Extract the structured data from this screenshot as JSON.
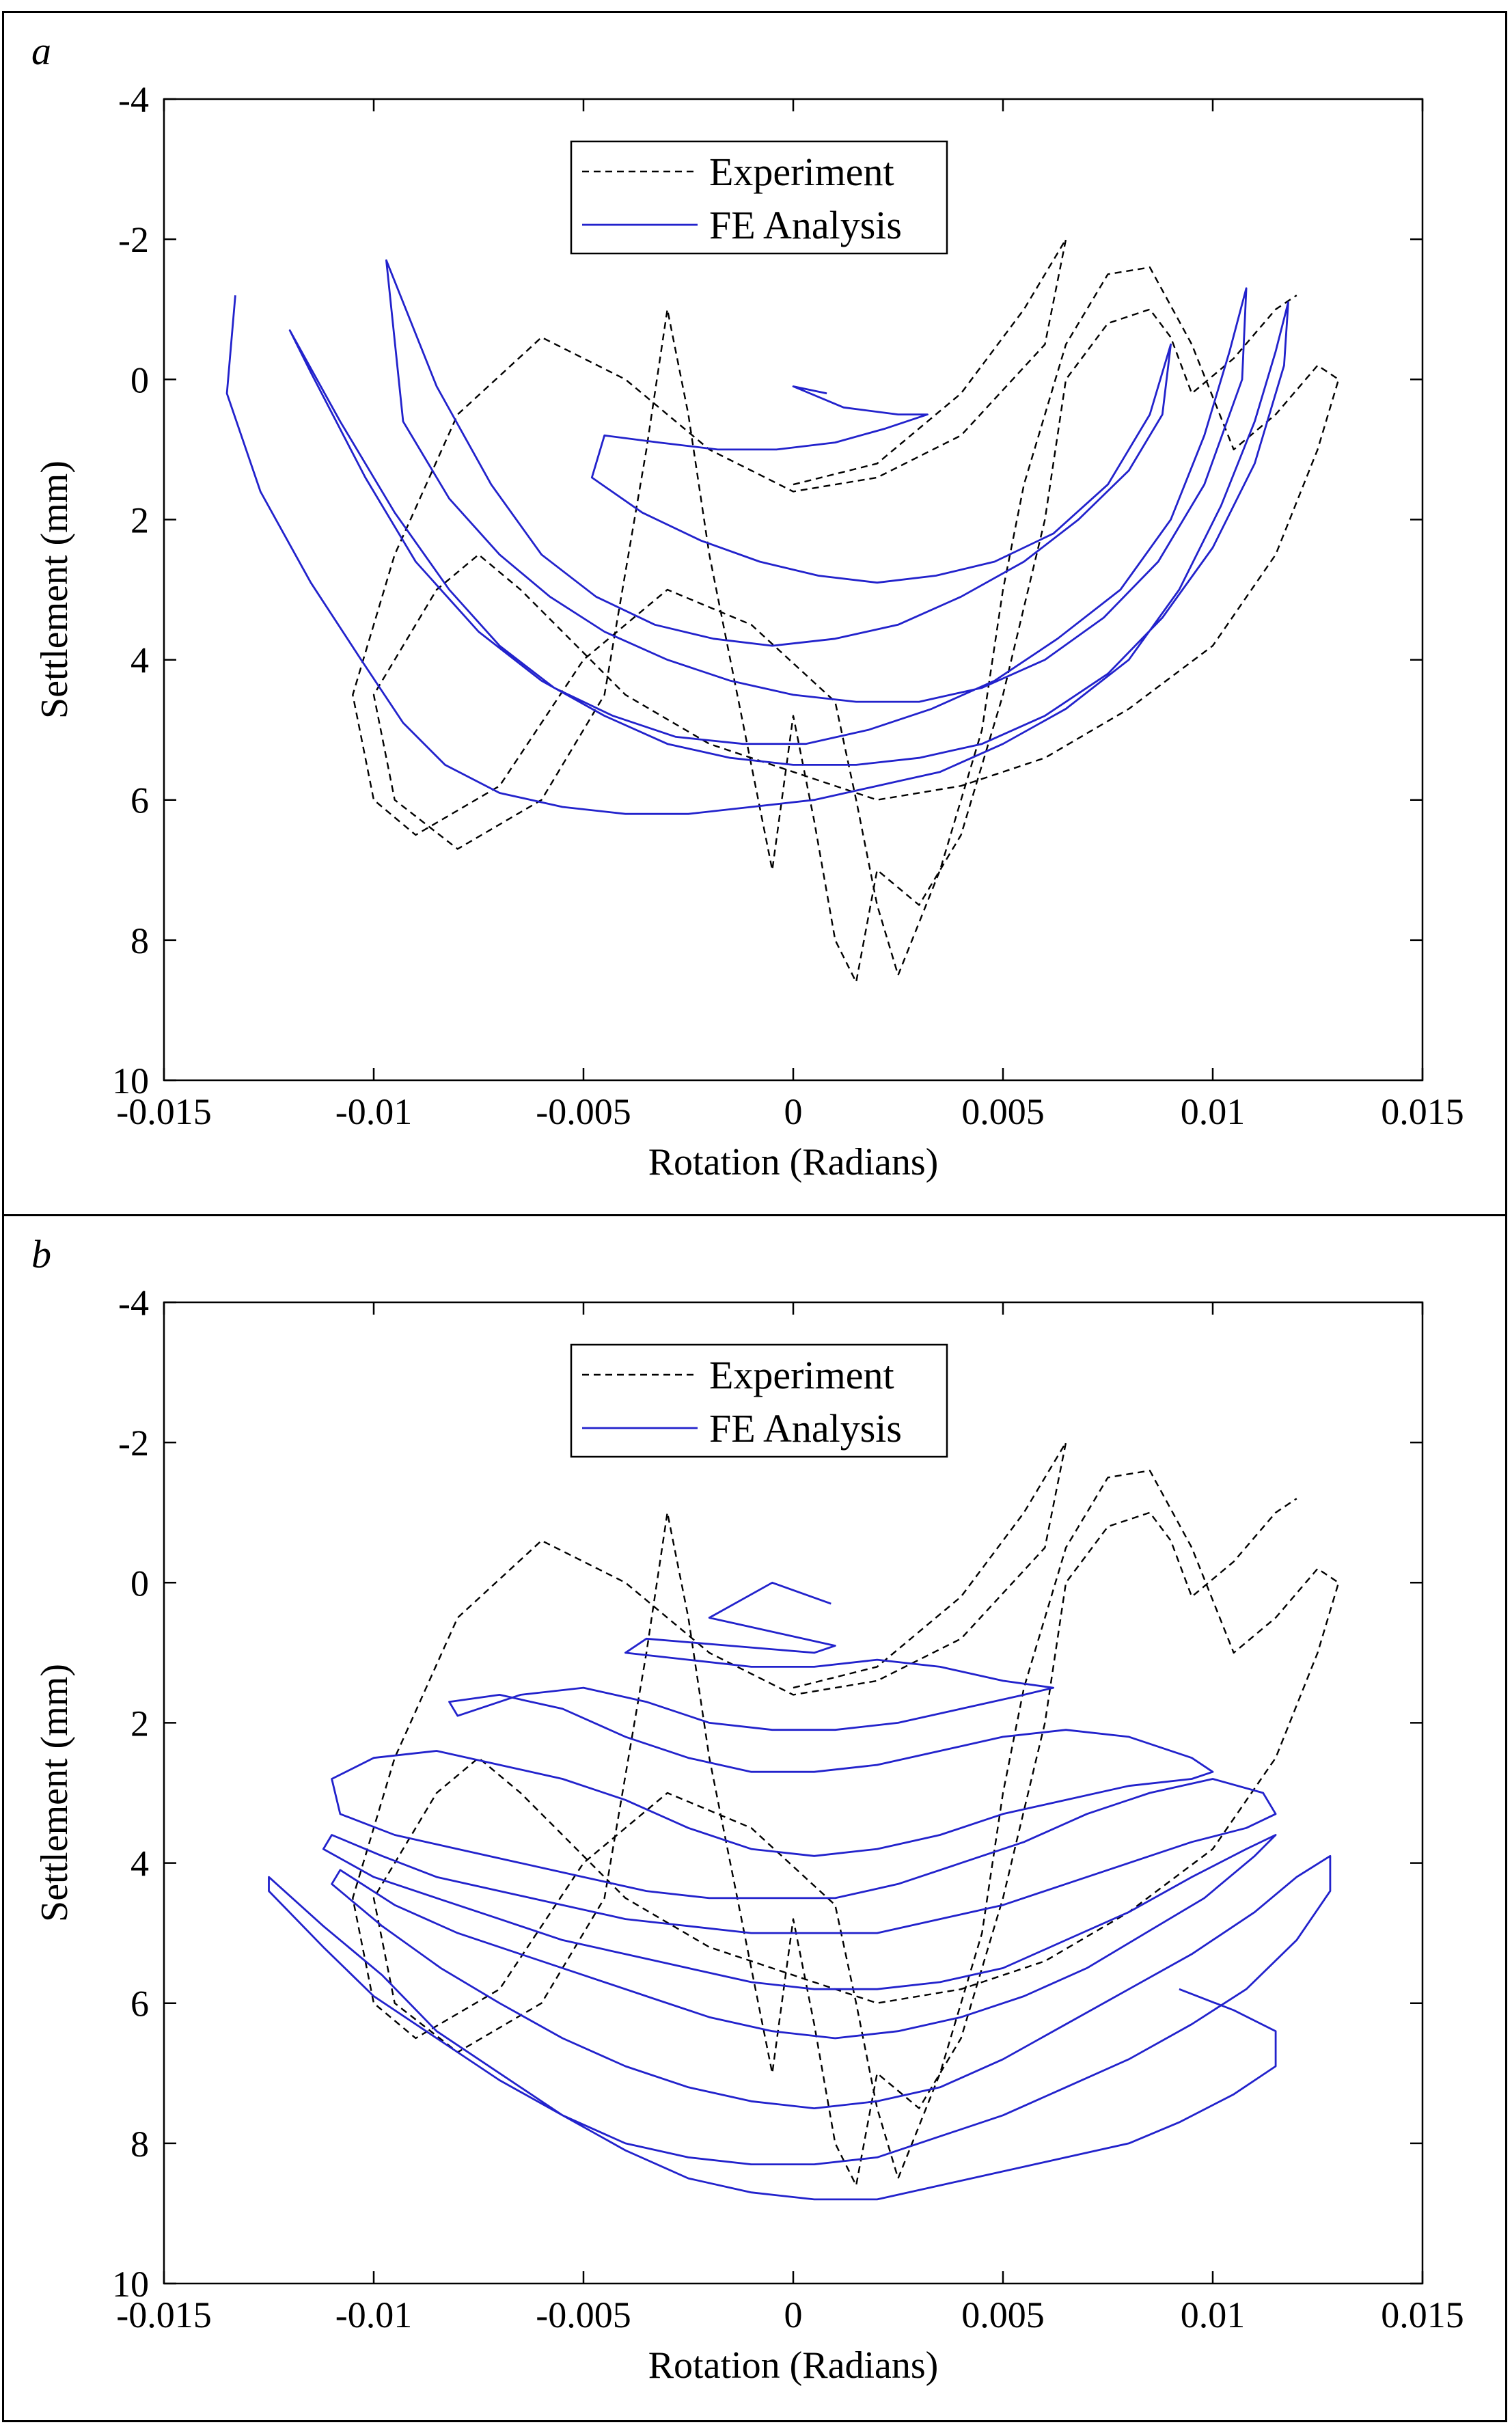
{
  "chart_data": [
    {
      "panel": "a",
      "type": "line",
      "xlabel": "Rotation (Radians)",
      "ylabel": "Settlement (mm)",
      "xlim": [
        -0.015,
        0.015
      ],
      "ylim": [
        -4,
        10
      ],
      "y_reversed": true,
      "xticks": [
        "-0.015",
        "-0.01",
        "-0.005",
        "0",
        "0.005",
        "0.01",
        "0.015"
      ],
      "yticks": [
        "-4",
        "-2",
        "0",
        "2",
        "4",
        "6",
        "8",
        "10"
      ],
      "legend": {
        "position": "top-center",
        "entries": [
          "Experiment",
          "FE Analysis"
        ]
      },
      "series": [
        {
          "name": "Experiment",
          "style": "dashed",
          "color": "#000000",
          "x": [
            0.0,
            0.002,
            0.004,
            0.0055,
            0.0065,
            0.006,
            0.004,
            0.002,
            0.0,
            -0.002,
            -0.004,
            -0.006,
            -0.008,
            -0.0095,
            -0.0105,
            -0.01,
            -0.009,
            -0.007,
            -0.005,
            -0.003,
            -0.001,
            0.001,
            0.0015,
            0.002,
            0.0025,
            0.0035,
            0.0045,
            0.005,
            0.0055,
            0.0065,
            0.0075,
            0.0085,
            0.0095,
            0.0105,
            0.0115,
            0.0125,
            0.013,
            0.0125,
            0.0115,
            0.01,
            0.008,
            0.006,
            0.004,
            0.002,
            0.0,
            -0.002,
            -0.004,
            -0.0055,
            -0.0065,
            -0.0075,
            -0.0085,
            -0.01,
            -0.0095,
            -0.008,
            -0.006,
            -0.0045,
            -0.0035,
            -0.003,
            -0.0025,
            -0.002,
            -0.0015,
            -0.001,
            -0.0005,
            0.0,
            0.0005,
            0.001,
            0.0015,
            0.002,
            0.003,
            0.004,
            0.005,
            0.006,
            0.0065,
            0.007,
            0.0075,
            0.0085,
            0.009,
            0.0095,
            0.0105,
            0.0115,
            0.012
          ],
          "y": [
            1.5,
            1.2,
            0.2,
            -1.0,
            -2.0,
            -0.5,
            0.8,
            1.4,
            1.6,
            1.0,
            0.0,
            -0.6,
            0.5,
            2.5,
            4.5,
            6.0,
            6.5,
            5.8,
            4.0,
            3.0,
            3.5,
            4.6,
            6.0,
            7.5,
            8.5,
            7.0,
            5.0,
            3.0,
            1.5,
            -0.5,
            -1.5,
            -1.6,
            -0.5,
            1.0,
            0.5,
            -0.2,
            0.0,
            1.0,
            2.5,
            3.8,
            4.7,
            5.4,
            5.8,
            6.0,
            5.6,
            5.2,
            4.5,
            3.6,
            3.0,
            2.5,
            3.0,
            4.5,
            6.0,
            6.7,
            6.0,
            4.5,
            1.0,
            -1.0,
            0.5,
            2.5,
            4.0,
            5.5,
            7.0,
            4.8,
            6.3,
            8.0,
            8.6,
            7.0,
            7.5,
            6.5,
            4.5,
            2.0,
            0.0,
            -0.4,
            -0.8,
            -1.0,
            -0.6,
            0.2,
            -0.3,
            -1.0,
            -1.2
          ]
        },
        {
          "name": "FE Analysis",
          "style": "solid",
          "color": "#2222cc",
          "x": [
            -0.0133,
            -0.0135,
            -0.0127,
            -0.0115,
            -0.0103,
            -0.0093,
            -0.0083,
            -0.007,
            -0.0055,
            -0.004,
            -0.0025,
            -0.001,
            0.0005,
            0.002,
            0.0035,
            0.005,
            0.0065,
            0.008,
            0.0092,
            0.0102,
            0.011,
            0.0115,
            0.0118,
            0.0117,
            0.011,
            0.01,
            0.0088,
            0.0075,
            0.006,
            0.0045,
            0.003,
            0.0015,
            0.0,
            -0.0015,
            -0.003,
            -0.0045,
            -0.006,
            -0.0075,
            -0.009,
            -0.0102,
            -0.0115,
            -0.012,
            -0.0108,
            -0.0095,
            -0.0082,
            -0.007,
            -0.0057,
            -0.0043,
            -0.0028,
            -0.0012,
            0.0003,
            0.0018,
            0.0033,
            0.0048,
            0.0063,
            0.0078,
            0.009,
            0.0098,
            0.0104,
            0.0108,
            0.0107,
            0.0098,
            0.0087,
            0.0074,
            0.006,
            0.0045,
            0.003,
            0.0015,
            0.0,
            -0.0015,
            -0.003,
            -0.0045,
            -0.0058,
            -0.007,
            -0.0082,
            -0.0093,
            -0.0097,
            -0.0085,
            -0.0072,
            -0.006,
            -0.0047,
            -0.0033,
            -0.0019,
            -0.0005,
            0.001,
            0.0025,
            0.004,
            0.0055,
            0.0068,
            0.008,
            0.0088,
            0.009,
            0.0085,
            0.0075,
            0.0062,
            0.0048,
            0.0034,
            0.002,
            0.0006,
            -0.0008,
            -0.0022,
            -0.0036,
            -0.0048,
            -0.0045,
            -0.0032,
            -0.0018,
            -0.0004,
            0.001,
            0.0022,
            0.0032,
            0.0025,
            0.0012,
            0.0,
            0.0008
          ],
          "y": [
            -1.2,
            0.2,
            1.6,
            2.9,
            4.0,
            4.9,
            5.5,
            5.9,
            6.1,
            6.2,
            6.2,
            6.1,
            6.0,
            5.8,
            5.6,
            5.2,
            4.7,
            4.0,
            3.0,
            1.8,
            0.6,
            -0.4,
            -1.1,
            -0.2,
            1.2,
            2.4,
            3.4,
            4.2,
            4.8,
            5.2,
            5.4,
            5.5,
            5.5,
            5.4,
            5.2,
            4.8,
            4.3,
            3.6,
            2.6,
            1.4,
            -0.1,
            -0.7,
            0.6,
            1.9,
            3.0,
            3.8,
            4.4,
            4.8,
            5.1,
            5.2,
            5.2,
            5.0,
            4.7,
            4.3,
            3.7,
            3.0,
            2.0,
            0.8,
            -0.4,
            -1.3,
            0.0,
            1.5,
            2.6,
            3.4,
            4.0,
            4.4,
            4.6,
            4.6,
            4.5,
            4.3,
            4.0,
            3.6,
            3.1,
            2.5,
            1.7,
            0.6,
            -1.7,
            0.1,
            1.5,
            2.5,
            3.1,
            3.5,
            3.7,
            3.8,
            3.7,
            3.5,
            3.1,
            2.6,
            2.0,
            1.3,
            0.5,
            -0.5,
            0.5,
            1.5,
            2.2,
            2.6,
            2.8,
            2.9,
            2.8,
            2.6,
            2.3,
            1.9,
            1.4,
            0.8,
            0.9,
            1.0,
            1.0,
            0.9,
            0.7,
            0.5,
            0.5,
            0.4,
            0.1,
            0.2
          ]
        }
      ]
    },
    {
      "panel": "b",
      "type": "line",
      "xlabel": "Rotation (Radians)",
      "ylabel": "Settlement (mm)",
      "xlim": [
        -0.015,
        0.015
      ],
      "ylim": [
        -4,
        10
      ],
      "y_reversed": true,
      "xticks": [
        "-0.015",
        "-0.01",
        "-0.005",
        "0",
        "0.005",
        "0.01",
        "0.015"
      ],
      "yticks": [
        "-4",
        "-2",
        "0",
        "2",
        "4",
        "6",
        "8",
        "10"
      ],
      "legend": {
        "position": "top-center",
        "entries": [
          "Experiment",
          "FE Analysis"
        ]
      },
      "series": [
        {
          "name": "Experiment",
          "style": "dashed",
          "color": "#000000",
          "x": [
            0.0,
            0.002,
            0.004,
            0.0055,
            0.0065,
            0.006,
            0.004,
            0.002,
            0.0,
            -0.002,
            -0.004,
            -0.006,
            -0.008,
            -0.0095,
            -0.0105,
            -0.01,
            -0.009,
            -0.007,
            -0.005,
            -0.003,
            -0.001,
            0.001,
            0.0015,
            0.002,
            0.0025,
            0.0035,
            0.0045,
            0.005,
            0.0055,
            0.0065,
            0.0075,
            0.0085,
            0.0095,
            0.0105,
            0.0115,
            0.0125,
            0.013,
            0.0125,
            0.0115,
            0.01,
            0.008,
            0.006,
            0.004,
            0.002,
            0.0,
            -0.002,
            -0.004,
            -0.0055,
            -0.0065,
            -0.0075,
            -0.0085,
            -0.01,
            -0.0095,
            -0.008,
            -0.006,
            -0.0045,
            -0.0035,
            -0.003,
            -0.0025,
            -0.002,
            -0.0015,
            -0.001,
            -0.0005,
            0.0,
            0.0005,
            0.001,
            0.0015,
            0.002,
            0.003,
            0.004,
            0.005,
            0.006,
            0.0065,
            0.007,
            0.0075,
            0.0085,
            0.009,
            0.0095,
            0.0105,
            0.0115,
            0.012
          ],
          "y": [
            1.5,
            1.2,
            0.2,
            -1.0,
            -2.0,
            -0.5,
            0.8,
            1.4,
            1.6,
            1.0,
            0.0,
            -0.6,
            0.5,
            2.5,
            4.5,
            6.0,
            6.5,
            5.8,
            4.0,
            3.0,
            3.5,
            4.6,
            6.0,
            7.5,
            8.5,
            7.0,
            5.0,
            3.0,
            1.5,
            -0.5,
            -1.5,
            -1.6,
            -0.5,
            1.0,
            0.5,
            -0.2,
            0.0,
            1.0,
            2.5,
            3.8,
            4.7,
            5.4,
            5.8,
            6.0,
            5.6,
            5.2,
            4.5,
            3.6,
            3.0,
            2.5,
            3.0,
            4.5,
            6.0,
            6.7,
            6.0,
            4.5,
            1.0,
            -1.0,
            0.5,
            2.5,
            4.0,
            5.5,
            7.0,
            4.8,
            6.3,
            8.0,
            8.6,
            7.0,
            7.5,
            6.5,
            4.5,
            2.0,
            0.0,
            -0.4,
            -0.8,
            -1.0,
            -0.6,
            0.2,
            -0.3,
            -1.0,
            -1.2
          ]
        },
        {
          "name": "FE Analysis",
          "style": "solid",
          "color": "#2222cc",
          "x": [
            0.0009,
            -0.0005,
            -0.002,
            -0.0005,
            0.001,
            0.0005,
            -0.0015,
            -0.0035,
            -0.004,
            -0.0025,
            -0.001,
            0.0005,
            0.002,
            0.0035,
            0.005,
            0.0062,
            0.0055,
            0.004,
            0.0025,
            0.001,
            -0.0005,
            -0.002,
            -0.0035,
            -0.005,
            -0.0065,
            -0.008,
            -0.0082,
            -0.007,
            -0.0055,
            -0.004,
            -0.0025,
            -0.001,
            0.0005,
            0.002,
            0.0035,
            0.005,
            0.0065,
            0.008,
            0.0095,
            0.01,
            0.0095,
            0.008,
            0.0065,
            0.005,
            0.0035,
            0.002,
            0.0005,
            -0.001,
            -0.0025,
            -0.004,
            -0.0055,
            -0.007,
            -0.0085,
            -0.01,
            -0.011,
            -0.0108,
            -0.0095,
            -0.008,
            -0.0065,
            -0.005,
            -0.0035,
            -0.002,
            -0.0005,
            0.001,
            0.0025,
            0.004,
            0.0055,
            0.007,
            0.0085,
            0.01,
            0.0112,
            0.0115,
            0.0108,
            0.0095,
            0.008,
            0.0065,
            0.005,
            0.0035,
            0.002,
            0.0005,
            -0.001,
            -0.0025,
            -0.004,
            -0.0055,
            -0.007,
            -0.0085,
            -0.0098,
            -0.011,
            -0.0112,
            -0.01,
            -0.0085,
            -0.007,
            -0.0055,
            -0.004,
            -0.0025,
            -0.001,
            0.0005,
            0.002,
            0.0035,
            0.005,
            0.0065,
            0.008,
            0.0095,
            0.0108,
            0.0115,
            0.011,
            0.0098,
            0.0084,
            0.007,
            0.0055,
            0.004,
            0.0025,
            0.001,
            -0.0005,
            -0.002,
            -0.0035,
            -0.005,
            -0.0065,
            -0.008,
            -0.0095,
            -0.0108,
            -0.011,
            -0.0098,
            -0.0084,
            -0.007,
            -0.0055,
            -0.004,
            -0.0025,
            -0.001,
            0.0005,
            0.002,
            0.0035,
            0.005,
            0.0065,
            0.008,
            0.0095,
            0.011,
            0.012,
            0.0128,
            0.0128,
            0.012,
            0.0108,
            0.0095,
            0.008,
            0.0065,
            0.005,
            0.0035,
            0.002,
            0.0005,
            -0.001,
            -0.0025,
            -0.004,
            -0.0055,
            -0.007,
            -0.0085,
            -0.01,
            -0.0112,
            -0.0125,
            -0.0125,
            -0.0112,
            -0.0098,
            -0.0085,
            -0.007,
            -0.0055,
            -0.004,
            -0.0025,
            -0.001,
            0.0005,
            0.002,
            0.0035,
            0.005,
            0.0065,
            0.008,
            0.0092,
            0.0105,
            0.0115,
            0.0115,
            0.0105,
            0.0092
          ],
          "y": [
            0.3,
            0.0,
            0.5,
            0.7,
            0.9,
            1.0,
            0.9,
            0.8,
            1.0,
            1.1,
            1.2,
            1.2,
            1.1,
            1.2,
            1.4,
            1.5,
            1.6,
            1.8,
            2.0,
            2.1,
            2.1,
            2.0,
            1.7,
            1.5,
            1.6,
            1.9,
            1.7,
            1.6,
            1.8,
            2.2,
            2.5,
            2.7,
            2.7,
            2.6,
            2.4,
            2.2,
            2.1,
            2.2,
            2.5,
            2.7,
            2.8,
            2.9,
            3.1,
            3.3,
            3.6,
            3.8,
            3.9,
            3.8,
            3.5,
            3.1,
            2.8,
            2.6,
            2.4,
            2.5,
            2.8,
            3.3,
            3.6,
            3.8,
            4.0,
            4.2,
            4.4,
            4.5,
            4.5,
            4.5,
            4.3,
            4.0,
            3.7,
            3.3,
            3.0,
            2.8,
            3.0,
            3.3,
            3.5,
            3.7,
            4.0,
            4.3,
            4.6,
            4.8,
            5.0,
            5.0,
            5.0,
            4.9,
            4.8,
            4.6,
            4.4,
            4.2,
            3.9,
            3.6,
            3.8,
            4.2,
            4.5,
            4.8,
            5.1,
            5.3,
            5.5,
            5.7,
            5.8,
            5.8,
            5.7,
            5.5,
            5.1,
            4.7,
            4.2,
            3.8,
            3.6,
            3.9,
            4.5,
            5.0,
            5.5,
            5.9,
            6.2,
            6.4,
            6.5,
            6.4,
            6.2,
            5.9,
            5.6,
            5.3,
            5.0,
            4.6,
            4.1,
            4.3,
            4.9,
            5.5,
            6.0,
            6.5,
            6.9,
            7.2,
            7.4,
            7.5,
            7.4,
            7.2,
            6.8,
            6.3,
            5.8,
            5.3,
            4.7,
            4.2,
            3.9,
            4.4,
            5.1,
            5.8,
            6.3,
            6.8,
            7.2,
            7.6,
            7.9,
            8.2,
            8.3,
            8.3,
            8.2,
            8.0,
            7.6,
            7.1,
            6.5,
            5.9,
            5.2,
            4.4,
            4.2,
            4.9,
            5.6,
            6.4,
            7.0,
            7.6,
            8.1,
            8.5,
            8.7,
            8.8,
            8.8,
            8.6,
            8.4,
            8.2,
            8.0,
            7.7,
            7.3,
            6.9,
            6.4,
            6.1,
            5.8
          ]
        }
      ]
    }
  ]
}
